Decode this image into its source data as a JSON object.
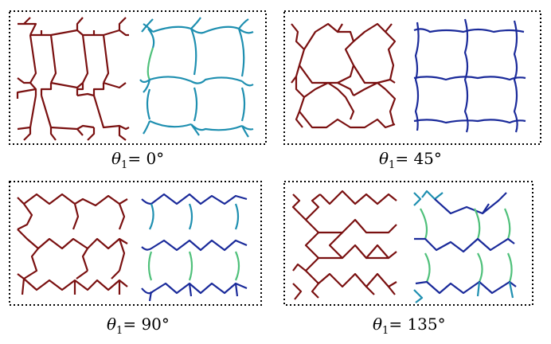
{
  "colors": {
    "before": "#7a1010",
    "after_low": "#1a2a9a",
    "after_mid": "#1e8fb0",
    "after_high": "#4fc07a",
    "frame": "#000000"
  },
  "panels": [
    {
      "theta_symbol": "θ",
      "subscript": "1",
      "equals": "= ",
      "value": "0°"
    },
    {
      "theta_symbol": "θ",
      "subscript": "1",
      "equals": "= ",
      "value": "45°"
    },
    {
      "theta_symbol": "θ",
      "subscript": "1",
      "equals": "= ",
      "value": "90°"
    },
    {
      "theta_symbol": "θ",
      "subscript": "1",
      "equals": "= ",
      "value": "135°"
    }
  ]
}
